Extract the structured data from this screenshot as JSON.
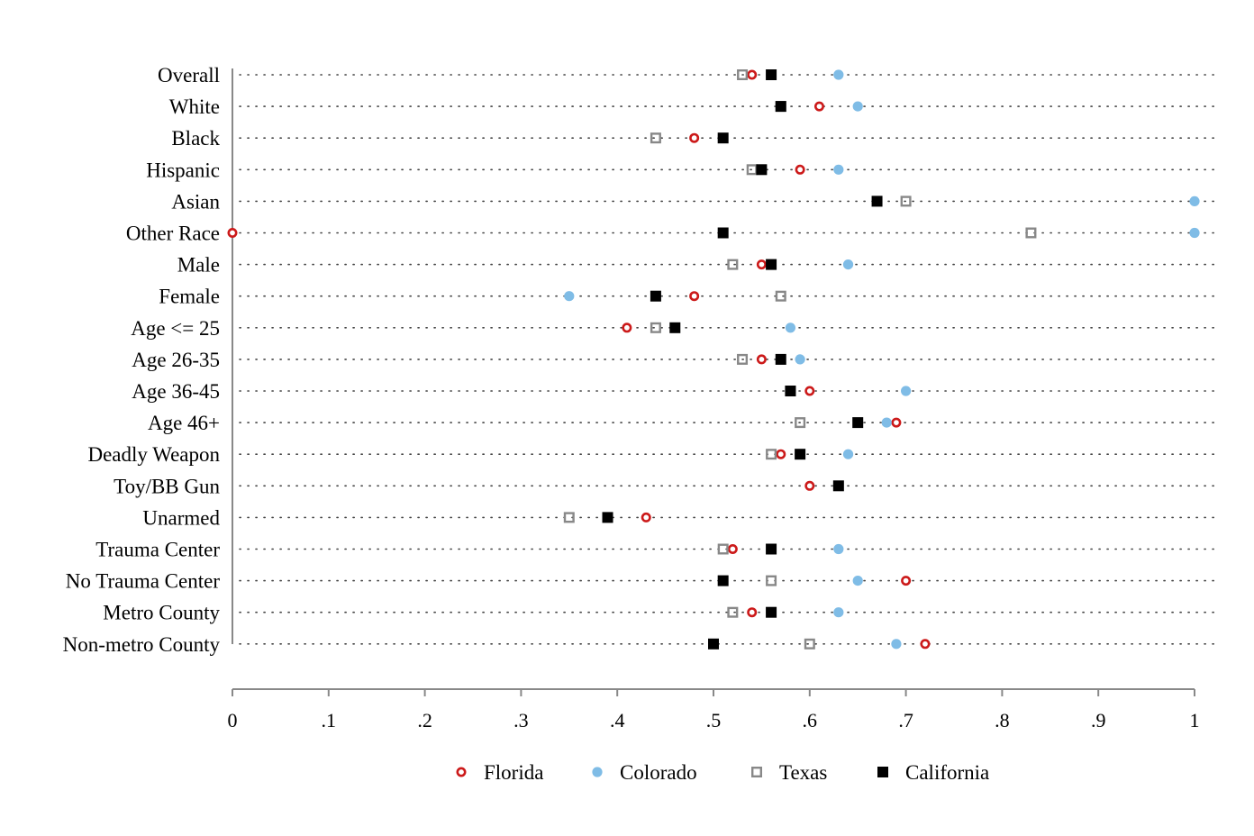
{
  "chart_data": {
    "type": "scatter",
    "title": "",
    "xlabel": "",
    "ylabel": "",
    "xlim": [
      0,
      1
    ],
    "x_ticks": [
      "0",
      ".1",
      ".2",
      ".3",
      ".4",
      ".5",
      ".6",
      ".7",
      ".8",
      ".9",
      "1"
    ],
    "categories": [
      "Overall",
      "White",
      "Black",
      "Hispanic",
      "Asian",
      "Other Race",
      "Male",
      "Female",
      "Age <= 25",
      "Age 26-35",
      "Age 36-45",
      "Age 46+",
      "Deadly Weapon",
      "Toy/BB Gun",
      "Unarmed",
      "Trauma Center",
      "No Trauma Center",
      "Metro County",
      "Non-metro County"
    ],
    "grid": "dotted horizontal lines per category",
    "legend_position": "bottom",
    "series": [
      {
        "name": "Florida",
        "marker": "hollow-circle",
        "color": "#cc1a1a",
        "values": [
          0.54,
          0.61,
          0.48,
          0.59,
          0.67,
          0.0,
          0.55,
          0.48,
          0.41,
          0.55,
          0.6,
          0.69,
          0.57,
          0.6,
          0.43,
          0.52,
          0.7,
          0.54,
          0.72
        ]
      },
      {
        "name": "Colorado",
        "marker": "filled-circle",
        "color": "#7fbce6",
        "values": [
          0.63,
          0.65,
          0.51,
          0.63,
          1.0,
          1.0,
          0.64,
          0.35,
          0.58,
          0.59,
          0.7,
          0.68,
          0.64,
          null,
          null,
          0.63,
          0.65,
          0.63,
          0.69
        ]
      },
      {
        "name": "Texas",
        "marker": "hollow-square",
        "color": "#888888",
        "values": [
          0.53,
          0.57,
          0.44,
          0.54,
          0.7,
          0.83,
          0.52,
          0.57,
          0.44,
          0.53,
          0.58,
          0.59,
          0.56,
          null,
          0.35,
          0.51,
          0.56,
          0.52,
          0.6
        ]
      },
      {
        "name": "California",
        "marker": "filled-square",
        "color": "#000000",
        "values": [
          0.56,
          0.57,
          0.51,
          0.55,
          0.67,
          0.51,
          0.56,
          0.44,
          0.46,
          0.57,
          0.58,
          0.65,
          0.59,
          0.63,
          0.39,
          0.56,
          0.51,
          0.56,
          0.5
        ]
      }
    ]
  }
}
